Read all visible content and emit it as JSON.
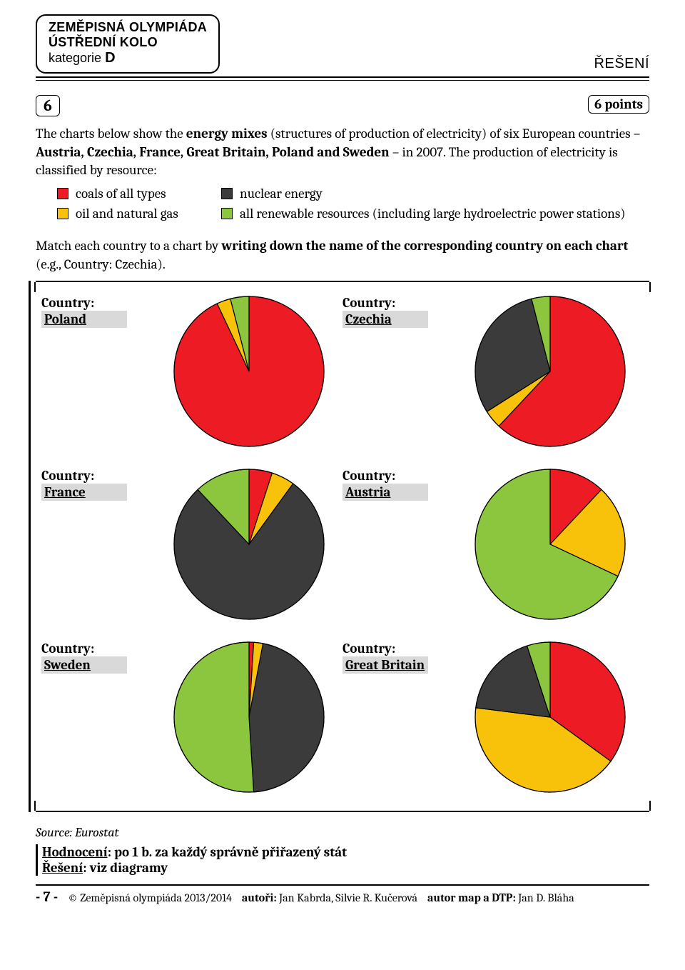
{
  "header": {
    "line1": "ZEMĚPISNÁ OLYMPIÁDA",
    "line2": "ÚSTŘEDNÍ KOLO",
    "line3_prefix": "kategorie ",
    "line3_category": "D",
    "right_label": "ŘEŠENÍ"
  },
  "question": {
    "number": "6",
    "points_label": "6 points"
  },
  "intro": {
    "text_before_bold1": "The charts below show the ",
    "bold1": "energy mixes",
    "text_mid": " (structures of production of electricity) of six European countries – ",
    "bold2": "Austria, Czechia, France, Great Britain, Poland and Sweden",
    "text_after": " – in 2007. The production of electricity is classified by resource:"
  },
  "legend": {
    "items": [
      {
        "label": "coals of all types",
        "color": "#ed1c24"
      },
      {
        "label": "nuclear energy",
        "color": "#3b3b3b"
      },
      {
        "label": "oil and natural gas",
        "color": "#f9c20a"
      },
      {
        "label": "all renewable resources (including large hydroelectric power stations)",
        "color": "#8cc63f"
      }
    ]
  },
  "task": {
    "text_before_bold": "Match each country to a chart by ",
    "bold": "writing down the name of the corresponding country on each chart",
    "text_after": " (e.g., Country: Czechia)."
  },
  "country_label": "Country:",
  "colors": {
    "coal": "#ed1c24",
    "nuclear": "#3b3b3b",
    "oilgas": "#f9c20a",
    "renewable": "#8cc63f",
    "stroke": "#000000"
  },
  "pie_style": {
    "radius": 105,
    "stroke_width": 1.2
  },
  "charts": [
    {
      "answer": "Poland",
      "slices": [
        {
          "resource": "coal",
          "value": 93
        },
        {
          "resource": "oilgas",
          "value": 3
        },
        {
          "resource": "nuclear",
          "value": 0
        },
        {
          "resource": "renewable",
          "value": 4
        }
      ]
    },
    {
      "answer": "Czechia",
      "slices": [
        {
          "resource": "coal",
          "value": 62
        },
        {
          "resource": "oilgas",
          "value": 4
        },
        {
          "resource": "nuclear",
          "value": 30
        },
        {
          "resource": "renewable",
          "value": 4
        }
      ]
    },
    {
      "answer": "France",
      "slices": [
        {
          "resource": "coal",
          "value": 5
        },
        {
          "resource": "oilgas",
          "value": 5
        },
        {
          "resource": "nuclear",
          "value": 78
        },
        {
          "resource": "renewable",
          "value": 12
        }
      ]
    },
    {
      "answer": "Austria",
      "slices": [
        {
          "resource": "coal",
          "value": 12
        },
        {
          "resource": "oilgas",
          "value": 20
        },
        {
          "resource": "nuclear",
          "value": 0
        },
        {
          "resource": "renewable",
          "value": 68
        }
      ]
    },
    {
      "answer": "Sweden",
      "slices": [
        {
          "resource": "coal",
          "value": 1
        },
        {
          "resource": "oilgas",
          "value": 2
        },
        {
          "resource": "nuclear",
          "value": 46
        },
        {
          "resource": "renewable",
          "value": 51
        }
      ]
    },
    {
      "answer": "Great Britain",
      "slices": [
        {
          "resource": "coal",
          "value": 35
        },
        {
          "resource": "oilgas",
          "value": 42
        },
        {
          "resource": "nuclear",
          "value": 18
        },
        {
          "resource": "renewable",
          "value": 5
        }
      ]
    }
  ],
  "source": "Source: Eurostat",
  "scoring": {
    "label": "Hodnocení",
    "text": ": po 1 b. za každý správně přiřazený stát",
    "solution_label": "Řešení",
    "solution_text": ": viz diagramy"
  },
  "footer": {
    "page": "- 7 -",
    "copyright": "© Zeměpisná olympiáda 2013/2014",
    "authors_label": "autoři:",
    "authors": " Jan Kabrda, Silvie R. Kučerová",
    "maps_label": "autor map a DTP:",
    "maps": " Jan D. Bláha"
  }
}
